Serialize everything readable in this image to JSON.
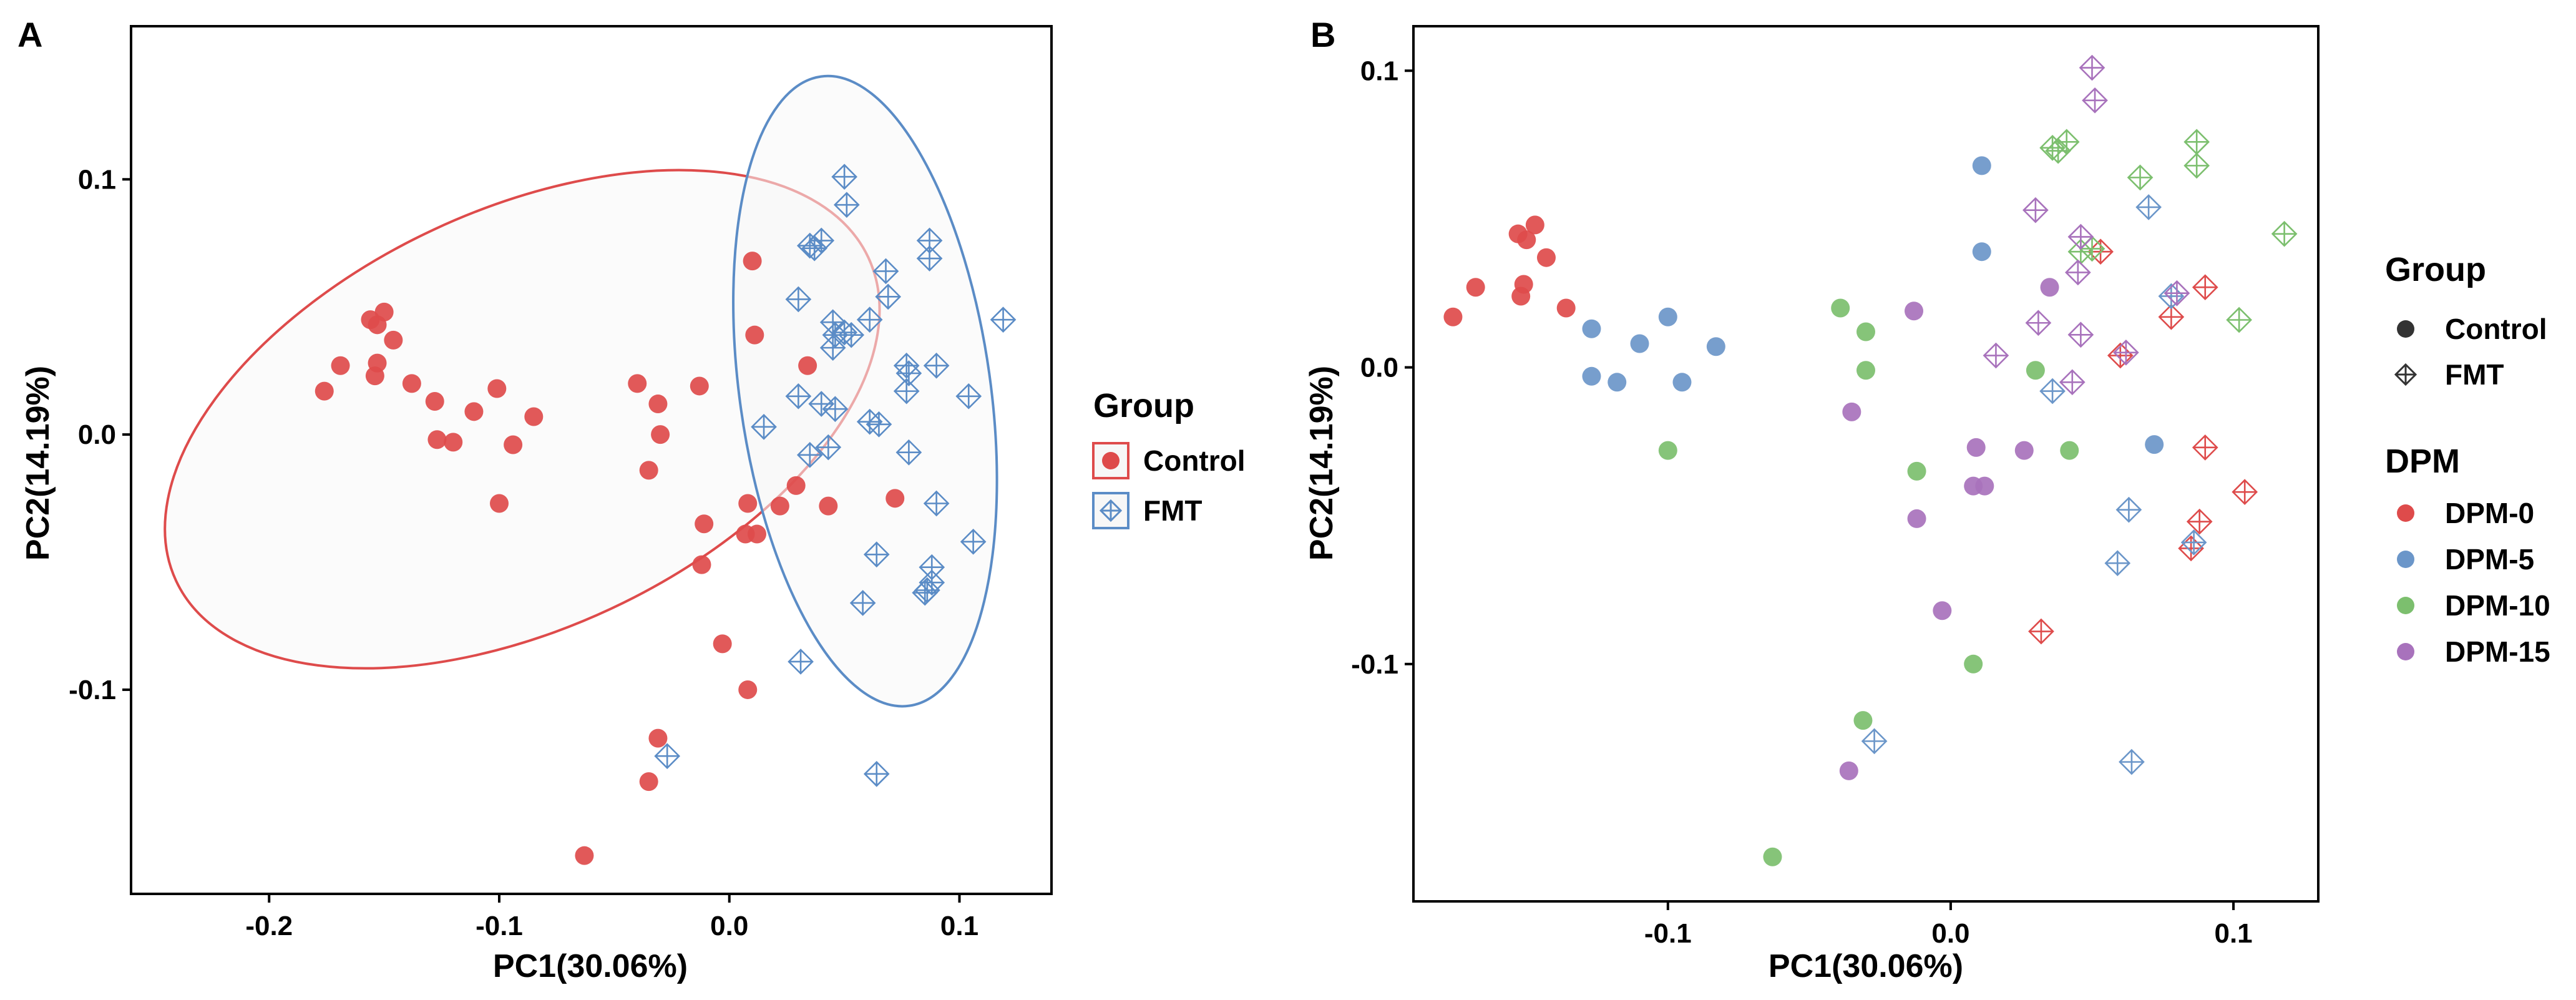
{
  "colors": {
    "control": "#DE4B4B",
    "fmt": "#5B8CC6",
    "dpm0": "#DE4B4B",
    "dpm5": "#6B96C9",
    "dpm10": "#7CBF6E",
    "dpm15": "#A872BC",
    "ellipse_fill": "#F7F7F7",
    "legend_black": "#333333"
  },
  "chart_data": [
    {
      "type": "scatter",
      "panel_label": "A",
      "xlabel": "PC1(30.06%)",
      "ylabel": "PC2(14.19%)",
      "xlim": [
        -0.26,
        0.14
      ],
      "ylim": [
        -0.18,
        0.16
      ],
      "xticks": [
        -0.2,
        -0.1,
        0.0,
        0.1
      ],
      "xtick_labels": [
        "-0.2",
        "-0.1",
        "0.0",
        "0.1"
      ],
      "yticks": [
        -0.1,
        0.0,
        0.1
      ],
      "ytick_labels": [
        "-0.1",
        "0.0",
        "0.1"
      ],
      "grid": false,
      "legend": {
        "title": "Group",
        "entries": [
          "Control",
          "FMT"
        ],
        "position": "right"
      },
      "ellipses": [
        {
          "group": "Control",
          "cx": -0.09,
          "cy": 0.006,
          "rx": 0.166,
          "ry": 0.082,
          "angle_deg": -25
        },
        {
          "group": "FMT",
          "cx": 0.059,
          "cy": 0.017,
          "rx": 0.0545,
          "ry": 0.1245,
          "angle_deg": -8
        }
      ],
      "series": [
        {
          "name": "Control",
          "marker": "circle",
          "points": [
            [
              -0.176,
              0.017
            ],
            [
              -0.169,
              0.027
            ],
            [
              -0.156,
              0.045
            ],
            [
              -0.153,
              0.043
            ],
            [
              -0.15,
              0.048
            ],
            [
              -0.146,
              0.037
            ],
            [
              -0.154,
              0.023
            ],
            [
              -0.153,
              0.028
            ],
            [
              -0.138,
              0.02
            ],
            [
              -0.128,
              0.013
            ],
            [
              -0.127,
              -0.002
            ],
            [
              -0.12,
              -0.003
            ],
            [
              -0.111,
              0.009
            ],
            [
              -0.101,
              0.018
            ],
            [
              -0.094,
              -0.004
            ],
            [
              -0.085,
              0.007
            ],
            [
              -0.1,
              -0.027
            ],
            [
              -0.04,
              0.02
            ],
            [
              -0.031,
              0.012
            ],
            [
              -0.03,
              0.0
            ],
            [
              -0.035,
              -0.014
            ],
            [
              -0.013,
              0.019
            ],
            [
              -0.011,
              -0.035
            ],
            [
              -0.012,
              -0.051
            ],
            [
              -0.003,
              -0.082
            ],
            [
              0.008,
              -0.027
            ],
            [
              0.007,
              -0.039
            ],
            [
              0.012,
              -0.039
            ],
            [
              0.008,
              -0.1
            ],
            [
              0.01,
              0.068
            ],
            [
              0.011,
              0.039
            ],
            [
              0.022,
              -0.028
            ],
            [
              0.029,
              -0.02
            ],
            [
              0.034,
              0.027
            ],
            [
              0.043,
              -0.028
            ],
            [
              0.072,
              -0.025
            ],
            [
              -0.031,
              -0.119
            ],
            [
              -0.035,
              -0.136
            ],
            [
              -0.063,
              -0.165
            ]
          ]
        },
        {
          "name": "FMT",
          "marker": "diamond-cross",
          "points": [
            [
              0.03,
              0.053
            ],
            [
              0.035,
              0.074
            ],
            [
              0.037,
              0.073
            ],
            [
              0.04,
              0.076
            ],
            [
              0.045,
              0.044
            ],
            [
              0.046,
              0.039
            ],
            [
              0.05,
              0.04
            ],
            [
              0.053,
              0.039
            ],
            [
              0.045,
              0.034
            ],
            [
              0.05,
              0.101
            ],
            [
              0.051,
              0.09
            ],
            [
              0.061,
              0.045
            ],
            [
              0.068,
              0.064
            ],
            [
              0.069,
              0.054
            ],
            [
              0.087,
              0.076
            ],
            [
              0.087,
              0.069
            ],
            [
              0.119,
              0.045
            ],
            [
              0.077,
              0.027
            ],
            [
              0.078,
              0.024
            ],
            [
              0.077,
              0.017
            ],
            [
              0.09,
              0.027
            ],
            [
              0.104,
              0.015
            ],
            [
              0.03,
              0.015
            ],
            [
              0.015,
              0.003
            ],
            [
              0.046,
              0.01
            ],
            [
              0.065,
              0.004
            ],
            [
              0.061,
              0.005
            ],
            [
              0.078,
              -0.007
            ],
            [
              0.04,
              0.012
            ],
            [
              0.035,
              -0.008
            ],
            [
              0.043,
              -0.005
            ],
            [
              0.09,
              -0.027
            ],
            [
              0.106,
              -0.042
            ],
            [
              0.064,
              -0.047
            ],
            [
              0.088,
              -0.052
            ],
            [
              0.088,
              -0.058
            ],
            [
              0.085,
              -0.062
            ],
            [
              0.086,
              -0.061
            ],
            [
              0.058,
              -0.066
            ],
            [
              0.031,
              -0.089
            ],
            [
              -0.027,
              -0.126
            ],
            [
              0.064,
              -0.133
            ]
          ]
        }
      ]
    },
    {
      "type": "scatter",
      "panel_label": "B",
      "xlabel": "PC1(30.06%)",
      "ylabel": "PC2(14.19%)",
      "xlim": [
        -0.19,
        0.13
      ],
      "ylim": [
        -0.18,
        0.115
      ],
      "xticks": [
        -0.1,
        0.0,
        0.1
      ],
      "xtick_labels": [
        "-0.1",
        "0.0",
        "0.1"
      ],
      "yticks": [
        -0.1,
        0.0,
        0.1
      ],
      "ytick_labels": [
        "-0.1",
        "0.0",
        "0.1"
      ],
      "grid": false,
      "legend": [
        {
          "title": "Group",
          "entries": [
            "Control",
            "FMT"
          ],
          "position": "right"
        },
        {
          "title": "DPM",
          "entries": [
            "DPM-0",
            "DPM-5",
            "DPM-10",
            "DPM-15"
          ],
          "position": "right"
        }
      ],
      "series": [
        {
          "name": "DPM-0 Control",
          "group": "Control",
          "dpm": "DPM-0",
          "marker": "circle",
          "points": [
            [
              -0.176,
              0.017
            ],
            [
              -0.168,
              0.027
            ],
            [
              -0.153,
              0.045
            ],
            [
              -0.15,
              0.043
            ],
            [
              -0.147,
              0.048
            ],
            [
              -0.143,
              0.037
            ],
            [
              -0.152,
              0.024
            ],
            [
              -0.151,
              0.028
            ],
            [
              -0.136,
              0.02
            ]
          ]
        },
        {
          "name": "DPM-5 Control",
          "group": "Control",
          "dpm": "DPM-5",
          "marker": "circle",
          "points": [
            [
              -0.127,
              0.013
            ],
            [
              -0.127,
              -0.003
            ],
            [
              -0.11,
              0.008
            ],
            [
              -0.1,
              0.017
            ],
            [
              -0.095,
              -0.005
            ],
            [
              -0.083,
              0.007
            ],
            [
              -0.118,
              -0.005
            ],
            [
              0.011,
              0.068
            ],
            [
              0.011,
              0.039
            ],
            [
              0.072,
              -0.026
            ]
          ]
        },
        {
          "name": "DPM-10 Control",
          "group": "Control",
          "dpm": "DPM-10",
          "marker": "circle",
          "points": [
            [
              -0.039,
              0.02
            ],
            [
              -0.03,
              0.012
            ],
            [
              -0.03,
              -0.001
            ],
            [
              -0.012,
              -0.035
            ],
            [
              -0.1,
              -0.028
            ],
            [
              0.03,
              -0.001
            ],
            [
              0.042,
              -0.028
            ],
            [
              0.008,
              -0.1
            ],
            [
              -0.031,
              -0.119
            ],
            [
              -0.063,
              -0.165
            ]
          ]
        },
        {
          "name": "DPM-15 Control",
          "group": "Control",
          "dpm": "DPM-15",
          "marker": "circle",
          "points": [
            [
              -0.013,
              0.019
            ],
            [
              0.035,
              0.027
            ],
            [
              -0.035,
              -0.015
            ],
            [
              0.009,
              -0.027
            ],
            [
              0.026,
              -0.028
            ],
            [
              0.008,
              -0.04
            ],
            [
              0.012,
              -0.04
            ],
            [
              -0.012,
              -0.051
            ],
            [
              -0.003,
              -0.082
            ],
            [
              -0.036,
              -0.136
            ]
          ]
        },
        {
          "name": "DPM-0 FMT",
          "group": "FMT",
          "dpm": "DPM-0",
          "marker": "diamond-cross",
          "points": [
            [
              0.053,
              0.039
            ],
            [
              0.078,
              0.017
            ],
            [
              0.09,
              0.027
            ],
            [
              0.06,
              0.004
            ],
            [
              0.09,
              -0.027
            ],
            [
              0.104,
              -0.042
            ],
            [
              0.088,
              -0.052
            ],
            [
              0.085,
              -0.061
            ],
            [
              0.032,
              -0.089
            ]
          ]
        },
        {
          "name": "DPM-5 FMT",
          "group": "FMT",
          "dpm": "DPM-5",
          "marker": "diamond-cross",
          "points": [
            [
              0.07,
              0.054
            ],
            [
              0.078,
              0.024
            ],
            [
              0.036,
              -0.008
            ],
            [
              0.063,
              -0.048
            ],
            [
              0.059,
              -0.066
            ],
            [
              0.086,
              -0.059
            ],
            [
              -0.027,
              -0.126
            ],
            [
              0.064,
              -0.133
            ]
          ]
        },
        {
          "name": "DPM-10 FMT",
          "group": "FMT",
          "dpm": "DPM-10",
          "marker": "diamond-cross",
          "points": [
            [
              0.036,
              0.074
            ],
            [
              0.038,
              0.073
            ],
            [
              0.041,
              0.076
            ],
            [
              0.067,
              0.064
            ],
            [
              0.087,
              0.076
            ],
            [
              0.087,
              0.068
            ],
            [
              0.118,
              0.045
            ],
            [
              0.102,
              0.016
            ],
            [
              0.046,
              0.039
            ],
            [
              0.05,
              0.04
            ]
          ]
        },
        {
          "name": "DPM-15 FMT",
          "group": "FMT",
          "dpm": "DPM-15",
          "marker": "diamond-cross",
          "points": [
            [
              0.05,
              0.101
            ],
            [
              0.051,
              0.09
            ],
            [
              0.03,
              0.053
            ],
            [
              0.046,
              0.044
            ],
            [
              0.045,
              0.032
            ],
            [
              0.08,
              0.025
            ],
            [
              0.031,
              0.015
            ],
            [
              0.046,
              0.011
            ],
            [
              0.016,
              0.004
            ],
            [
              0.062,
              0.005
            ],
            [
              0.043,
              -0.005
            ]
          ]
        }
      ]
    }
  ]
}
